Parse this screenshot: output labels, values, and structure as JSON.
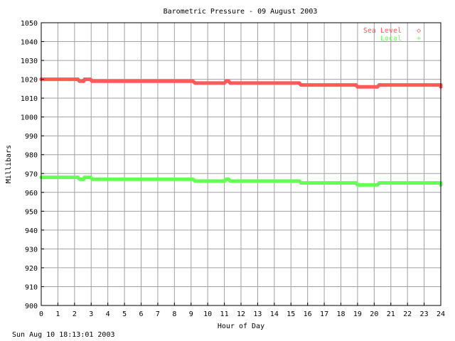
{
  "chart_data": {
    "type": "line",
    "title": "Barometric Pressure - 09 August 2003",
    "xlabel": "Hour of Day",
    "ylabel": "Millibars",
    "xlim": [
      0,
      24
    ],
    "ylim": [
      900,
      1050
    ],
    "x_ticks": [
      "0",
      "1",
      "2",
      "3",
      "4",
      "5",
      "6",
      "7",
      "8",
      "9",
      "10",
      "11",
      "12",
      "13",
      "14",
      "15",
      "16",
      "17",
      "18",
      "19",
      "20",
      "21",
      "22",
      "23",
      "24"
    ],
    "y_ticks": [
      "900",
      "910",
      "920",
      "930",
      "940",
      "950",
      "960",
      "970",
      "980",
      "990",
      "1000",
      "1010",
      "1020",
      "1030",
      "1040",
      "1050"
    ],
    "grid": true,
    "legend_position": "top-right",
    "series": [
      {
        "name": "Sea Level",
        "marker": "◇",
        "color": "#ff5a5a",
        "points": [
          [
            0,
            1020
          ],
          [
            2.2,
            1020
          ],
          [
            2.3,
            1019
          ],
          [
            2.55,
            1019
          ],
          [
            2.6,
            1020
          ],
          [
            2.95,
            1020
          ],
          [
            3.05,
            1019
          ],
          [
            9.1,
            1019
          ],
          [
            9.25,
            1018
          ],
          [
            11.0,
            1018
          ],
          [
            11.1,
            1019
          ],
          [
            11.25,
            1019
          ],
          [
            11.35,
            1018
          ],
          [
            15.5,
            1018
          ],
          [
            15.6,
            1017
          ],
          [
            18.9,
            1017
          ],
          [
            19.0,
            1016
          ],
          [
            20.2,
            1016
          ],
          [
            20.3,
            1017
          ],
          [
            24,
            1017
          ],
          [
            24,
            1016
          ]
        ]
      },
      {
        "name": "Local",
        "marker": "+",
        "color": "#66ff55",
        "points": [
          [
            0,
            968
          ],
          [
            2.2,
            968
          ],
          [
            2.3,
            967
          ],
          [
            2.55,
            967
          ],
          [
            2.6,
            968
          ],
          [
            2.95,
            968
          ],
          [
            3.05,
            967
          ],
          [
            9.1,
            967
          ],
          [
            9.25,
            966
          ],
          [
            11.0,
            966
          ],
          [
            11.1,
            967
          ],
          [
            11.25,
            967
          ],
          [
            11.35,
            966
          ],
          [
            15.5,
            966
          ],
          [
            15.6,
            965
          ],
          [
            18.9,
            965
          ],
          [
            19.0,
            964
          ],
          [
            20.2,
            964
          ],
          [
            20.3,
            965
          ],
          [
            24,
            965
          ],
          [
            24,
            964
          ]
        ]
      }
    ]
  },
  "footer": {
    "timestamp": "Sun Aug 10 18:13:01 2003"
  }
}
